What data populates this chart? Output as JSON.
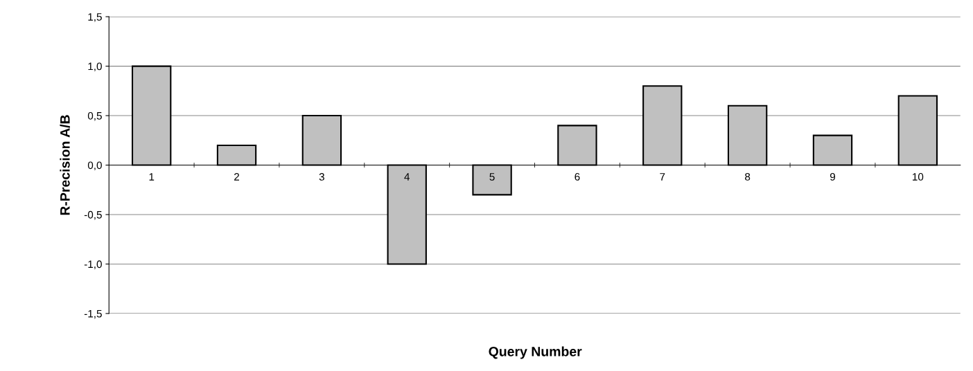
{
  "chart_data": {
    "type": "bar",
    "xlabel": "Query Number",
    "ylabel": "R-Precision A/B",
    "categories": [
      "1",
      "2",
      "3",
      "4",
      "5",
      "6",
      "7",
      "8",
      "9",
      "10"
    ],
    "values": [
      1.0,
      0.2,
      0.5,
      -1.0,
      -0.3,
      0.4,
      0.8,
      0.6,
      0.3,
      0.7
    ],
    "color": "#c0c0c0",
    "ylim": [
      -1.5,
      1.5
    ],
    "yticks": [
      {
        "value": -1.5,
        "label": "-1,5"
      },
      {
        "value": -1.0,
        "label": "-1,0"
      },
      {
        "value": -0.5,
        "label": "-0,5"
      },
      {
        "value": 0,
        "label": "0,0"
      },
      {
        "value": 0.5,
        "label": "0,5"
      },
      {
        "value": 1.0,
        "label": "1,0"
      },
      {
        "value": 1.5,
        "label": "1,5"
      }
    ],
    "grid": "y",
    "legend": false
  }
}
